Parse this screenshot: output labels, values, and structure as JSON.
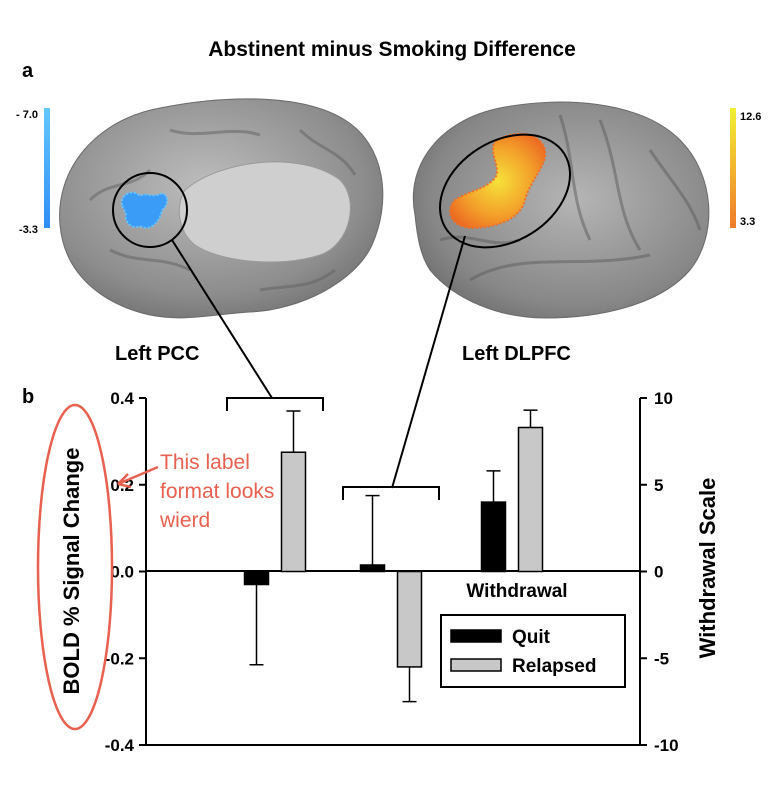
{
  "title": "Abstinent minus Smoking Difference",
  "panel_labels": {
    "a": "a",
    "b": "b"
  },
  "colorbars": {
    "left": {
      "top": "- 7.0",
      "bottom": "-3.3",
      "colors": [
        "#2f8ff5",
        "#63c8ff"
      ]
    },
    "right": {
      "top": "12.6",
      "bottom": "3.3",
      "colors": [
        "#f07a2a",
        "#f2f034"
      ]
    }
  },
  "regions": {
    "pcc": "Left PCC",
    "dlpfc": "Left DLPFC"
  },
  "annotation": {
    "lines": [
      "This label",
      "format looks",
      "wierd"
    ],
    "color": "#e8604f"
  },
  "colors": {
    "quit": "#000000",
    "relapsed": "#c8c8c8"
  },
  "chart_data": {
    "type": "bar",
    "categories": [
      "Left PCC",
      "Left DLPFC",
      "Withdrawal"
    ],
    "ylabel": "BOLD % Signal Change",
    "ylim": [
      -0.4,
      0.4
    ],
    "yticks": [
      "0.4",
      "0.2",
      "0.0",
      "-0.2",
      "-0.4"
    ],
    "y2label": "Withdrawal Scale",
    "y2lim": [
      -10,
      10
    ],
    "y2ticks": [
      "10",
      "5",
      "0",
      "-5",
      "-10"
    ],
    "category_label": "Withdrawal",
    "legend": {
      "position": "bottom-right",
      "entries": [
        "Quit",
        "Relapsed"
      ]
    },
    "series": [
      {
        "name": "Quit",
        "values": [
          -0.03,
          0.015,
          4.0
        ],
        "errors": [
          0.185,
          0.16,
          1.8
        ]
      },
      {
        "name": "Relapsed",
        "values": [
          0.275,
          -0.22,
          8.3
        ],
        "errors": [
          0.095,
          0.08,
          1.0
        ]
      }
    ],
    "axis": [
      "left",
      "left",
      "right"
    ]
  }
}
